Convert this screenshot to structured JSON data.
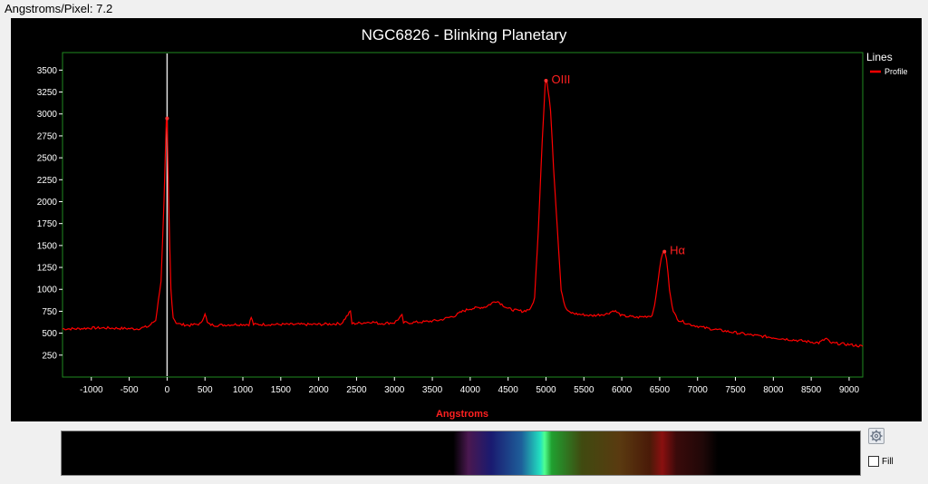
{
  "header": {
    "angstroms_per_pixel_label": "Angstroms/Pixel: 7.2"
  },
  "colors": {
    "plot_background": "#000000",
    "plot_frame": "#1f8a1f",
    "series": "#ff0000",
    "axis_text": "#ffffff",
    "axis_title": "#ff2020"
  },
  "chart_data": {
    "type": "line",
    "title": "NGC6826 - Blinking Planetary",
    "xlabel": "Angstroms",
    "ylabel": "",
    "xlim": [
      -1380,
      9180
    ],
    "ylim": [
      0,
      3700
    ],
    "x_ticks": [
      -1000,
      -500,
      0,
      500,
      1000,
      1500,
      2000,
      2500,
      3000,
      3500,
      4000,
      4500,
      5000,
      5500,
      6000,
      6500,
      7000,
      7500,
      8000,
      8500,
      9000
    ],
    "y_ticks": [
      250,
      500,
      750,
      1000,
      1250,
      1500,
      1750,
      2000,
      2250,
      2500,
      2750,
      3000,
      3250,
      3500
    ],
    "grid": false,
    "legend": {
      "title": "Lines",
      "position": "right",
      "entries": [
        "Profile"
      ]
    },
    "series": [
      {
        "name": "Profile",
        "x": [
          -1380,
          -1200,
          -1000,
          -800,
          -600,
          -400,
          -250,
          -150,
          -80,
          -40,
          -10,
          0,
          20,
          50,
          80,
          120,
          180,
          300,
          450,
          500,
          530,
          560,
          650,
          900,
          1080,
          1110,
          1140,
          1400,
          1700,
          2000,
          2300,
          2420,
          2440,
          2460,
          2600,
          2700,
          2800,
          3000,
          3100,
          3120,
          3200,
          3400,
          3600,
          3800,
          3900,
          4000,
          4100,
          4200,
          4300,
          4350,
          4400,
          4500,
          4600,
          4700,
          4800,
          4850,
          4900,
          4950,
          4990,
          5010,
          5060,
          5100,
          5150,
          5200,
          5250,
          5300,
          5400,
          5600,
          5800,
          5900,
          6000,
          6200,
          6400,
          6450,
          6500,
          6540,
          6563,
          6590,
          6630,
          6680,
          6750,
          6900,
          7100,
          7400,
          7700,
          8000,
          8300,
          8600,
          8700,
          8750,
          9000,
          9180
        ],
        "y": [
          550,
          550,
          560,
          560,
          555,
          550,
          575,
          650,
          1100,
          2000,
          2950,
          2920,
          2000,
          1000,
          680,
          620,
          600,
          590,
          610,
          730,
          620,
          600,
          590,
          600,
          600,
          680,
          600,
          600,
          600,
          600,
          610,
          750,
          610,
          610,
          620,
          630,
          610,
          620,
          700,
          620,
          620,
          630,
          650,
          700,
          750,
          780,
          790,
          800,
          850,
          870,
          840,
          780,
          760,
          750,
          780,
          900,
          1700,
          2700,
          3350,
          3380,
          3050,
          2400,
          1700,
          1000,
          800,
          740,
          720,
          700,
          720,
          760,
          700,
          680,
          700,
          900,
          1250,
          1420,
          1430,
          1350,
          1000,
          740,
          650,
          600,
          560,
          520,
          480,
          450,
          420,
          390,
          440,
          390,
          370,
          350
        ]
      }
    ],
    "markers": [
      {
        "x": 0,
        "y": 2950
      },
      {
        "x": 5000,
        "y": 3380
      },
      {
        "x": 6563,
        "y": 1430
      }
    ],
    "annotations": [
      {
        "text": "OIII",
        "x": 5000,
        "y": 3380
      },
      {
        "text": "Hα",
        "x": 6563,
        "y": 1430
      }
    ],
    "cursor_x": 0
  },
  "spectrum": {
    "wavelength_range": [
      4000,
      7000
    ],
    "stops": [
      {
        "wavelength": 3800,
        "color": "#000000"
      },
      {
        "wavelength": 4000,
        "color": "#4a1850"
      },
      {
        "wavelength": 4300,
        "color": "#1a1a70"
      },
      {
        "wavelength": 4700,
        "color": "#1e5f9a"
      },
      {
        "wavelength": 4950,
        "color": "#22e0c0"
      },
      {
        "wavelength": 5007,
        "color": "#50ff90"
      },
      {
        "wavelength": 5100,
        "color": "#20a030"
      },
      {
        "wavelength": 5500,
        "color": "#404a10"
      },
      {
        "wavelength": 6000,
        "color": "#5a3a10"
      },
      {
        "wavelength": 6400,
        "color": "#4a1a08"
      },
      {
        "wavelength": 6563,
        "color": "#8a1010"
      },
      {
        "wavelength": 6750,
        "color": "#3a0a0a"
      },
      {
        "wavelength": 7100,
        "color": "#200808"
      },
      {
        "wavelength": 7300,
        "color": "#000000"
      }
    ]
  },
  "controls": {
    "fill_label": "Fill",
    "fill_checked": false
  }
}
